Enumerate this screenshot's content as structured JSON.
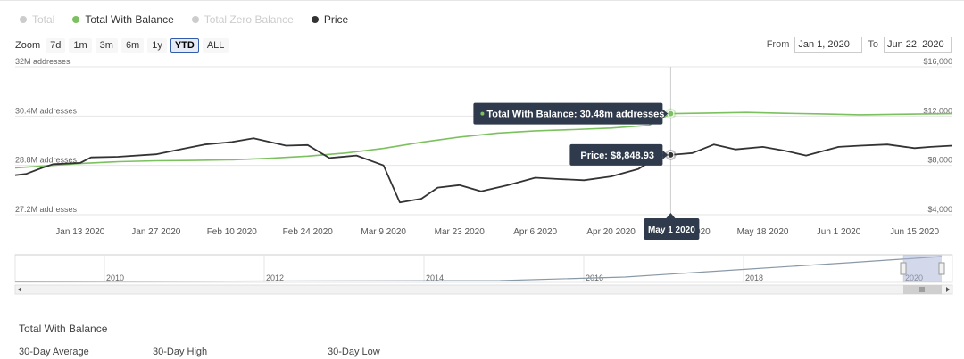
{
  "legend": [
    {
      "label": "Total",
      "color": "#cccccc",
      "active": false
    },
    {
      "label": "Total With Balance",
      "color": "#7cc15f",
      "active": true
    },
    {
      "label": "Total Zero Balance",
      "color": "#cccccc",
      "active": false
    },
    {
      "label": "Price",
      "color": "#333333",
      "active": true
    }
  ],
  "zoom": {
    "label": "Zoom",
    "buttons": [
      "7d",
      "1m",
      "3m",
      "6m",
      "1y",
      "YTD",
      "ALL"
    ],
    "selected": "YTD"
  },
  "range": {
    "from_label": "From",
    "from": "Jan 1, 2020",
    "to_label": "To",
    "to": "Jun 22, 2020"
  },
  "chart_data": {
    "type": "line",
    "x_range": [
      "2020-01-01",
      "2020-06-22"
    ],
    "x_ticks": [
      "Jan 13 2020",
      "Jan 27 2020",
      "Feb 10 2020",
      "Feb 24 2020",
      "Mar 9 2020",
      "Mar 23 2020",
      "Apr 6 2020",
      "Apr 20 2020",
      "May 4 2020",
      "May 18 2020",
      "Jun 1 2020",
      "Jun 15 2020"
    ],
    "y_left": {
      "ticks": [
        "32M addresses",
        "30.4M addresses",
        "28.8M addresses",
        "27.2M addresses"
      ],
      "range": [
        27.2,
        32
      ]
    },
    "y_right": {
      "ticks": [
        "$16,000",
        "$12,000",
        "$8,000",
        "$4,000"
      ],
      "range": [
        4000,
        16000
      ]
    },
    "series": [
      {
        "name": "Total With Balance",
        "axis": "left",
        "color": "#7cc15f",
        "x": [
          "2020-01-01",
          "2020-01-06",
          "2020-01-13",
          "2020-01-20",
          "2020-01-27",
          "2020-02-03",
          "2020-02-10",
          "2020-02-17",
          "2020-02-24",
          "2020-03-02",
          "2020-03-09",
          "2020-03-16",
          "2020-03-23",
          "2020-03-30",
          "2020-04-06",
          "2020-04-13",
          "2020-04-20",
          "2020-04-27",
          "2020-05-01",
          "2020-05-08",
          "2020-05-15",
          "2020-05-22",
          "2020-05-29",
          "2020-06-05",
          "2020-06-12",
          "2020-06-22"
        ],
        "values": [
          28.72,
          28.78,
          28.86,
          28.92,
          28.95,
          28.96,
          28.98,
          29.03,
          29.1,
          29.2,
          29.35,
          29.55,
          29.72,
          29.85,
          29.92,
          29.96,
          30.01,
          30.1,
          30.48,
          30.5,
          30.52,
          30.49,
          30.47,
          30.44,
          30.46,
          30.48
        ]
      },
      {
        "name": "Price",
        "axis": "right",
        "color": "#333333",
        "x": [
          "2020-01-01",
          "2020-01-03",
          "2020-01-06",
          "2020-01-08",
          "2020-01-13",
          "2020-01-15",
          "2020-01-20",
          "2020-01-27",
          "2020-02-01",
          "2020-02-05",
          "2020-02-10",
          "2020-02-14",
          "2020-02-20",
          "2020-02-24",
          "2020-02-28",
          "2020-03-04",
          "2020-03-09",
          "2020-03-12",
          "2020-03-16",
          "2020-03-19",
          "2020-03-23",
          "2020-03-27",
          "2020-04-01",
          "2020-04-06",
          "2020-04-10",
          "2020-04-15",
          "2020-04-20",
          "2020-04-25",
          "2020-04-29",
          "2020-05-01",
          "2020-05-05",
          "2020-05-09",
          "2020-05-13",
          "2020-05-18",
          "2020-05-22",
          "2020-05-26",
          "2020-06-01",
          "2020-06-05",
          "2020-06-10",
          "2020-06-15",
          "2020-06-18",
          "2020-06-22"
        ],
        "values": [
          7200,
          7300,
          7800,
          8100,
          8200,
          8650,
          8700,
          8900,
          9350,
          9700,
          9900,
          10200,
          9600,
          9650,
          8600,
          8800,
          8000,
          5000,
          5300,
          6200,
          6400,
          5900,
          6400,
          7000,
          6900,
          6800,
          7100,
          7700,
          8800,
          8848.93,
          9000,
          9700,
          9300,
          9500,
          9200,
          8800,
          9500,
          9600,
          9700,
          9400,
          9500,
          9600
        ]
      }
    ],
    "tooltips": [
      {
        "series": "Total With Balance",
        "text": "Total With Balance: 30.48m addresses",
        "x": "2020-05-01",
        "value": 30.48
      },
      {
        "series": "Price",
        "text": "Price: $8,848.93",
        "x": "2020-05-01",
        "value": 8848.93
      }
    ],
    "crosshair_label": "May 1 2020",
    "navigator": {
      "ticks": [
        "2010",
        "2012",
        "2014",
        "2016",
        "2018",
        "2020"
      ]
    }
  },
  "stats": {
    "title": "Total With Balance",
    "labels": [
      "30-Day Average",
      "30-Day High",
      "30-Day Low"
    ]
  }
}
